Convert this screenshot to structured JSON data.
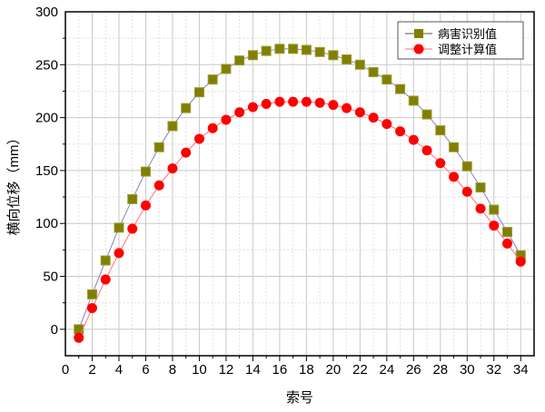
{
  "chart_data": {
    "type": "line",
    "xlabel": "索号",
    "ylabel": "横向位移（mm）",
    "xlim": [
      0,
      35
    ],
    "ylim": [
      -25,
      300
    ],
    "xticks": [
      0,
      2,
      4,
      6,
      8,
      10,
      12,
      14,
      16,
      18,
      20,
      22,
      24,
      26,
      28,
      30,
      32,
      34
    ],
    "yticks": [
      0,
      50,
      100,
      150,
      200,
      250,
      300
    ],
    "grid": true,
    "legend_position": "top-right",
    "x": [
      1,
      2,
      3,
      4,
      5,
      6,
      7,
      8,
      9,
      10,
      11,
      12,
      13,
      14,
      15,
      16,
      17,
      18,
      19,
      20,
      21,
      22,
      23,
      24,
      25,
      26,
      27,
      28,
      29,
      30,
      31,
      32,
      33,
      34
    ],
    "series": [
      {
        "name": "病害识别值",
        "marker": "square",
        "color": "#808000",
        "values": [
          0,
          33,
          65,
          96,
          123,
          149,
          172,
          192,
          209,
          224,
          236,
          246,
          254,
          259,
          263,
          265,
          265,
          264,
          262,
          259,
          255,
          250,
          243,
          236,
          227,
          216,
          203,
          188,
          172,
          154,
          134,
          113,
          92,
          70
        ]
      },
      {
        "name": "调整计算值",
        "marker": "circle",
        "color": "#ff0000",
        "values": [
          -8,
          20,
          47,
          72,
          95,
          117,
          136,
          152,
          167,
          180,
          190,
          198,
          205,
          210,
          213,
          215,
          215,
          215,
          214,
          212,
          209,
          205,
          200,
          194,
          187,
          179,
          169,
          157,
          144,
          130,
          114,
          98,
          81,
          64
        ]
      }
    ]
  }
}
